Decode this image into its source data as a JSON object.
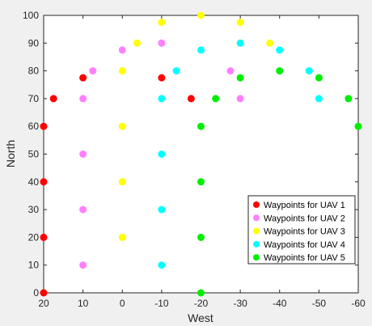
{
  "chart_data": {
    "type": "scatter",
    "title": "",
    "xlabel": "West",
    "ylabel": "North",
    "xlim": [
      20,
      -60
    ],
    "ylim": [
      0,
      100
    ],
    "x_reversed": true,
    "xticks": [
      20,
      10,
      0,
      -10,
      -20,
      -30,
      -40,
      -50,
      -60
    ],
    "yticks": [
      0,
      10,
      20,
      30,
      40,
      50,
      60,
      70,
      80,
      90,
      100
    ],
    "grid": false,
    "legend_placement": "bottom-right",
    "series": [
      {
        "name": "Waypoints for UAV 1",
        "color": "#ff0000",
        "points": [
          [
            20,
            0
          ],
          [
            20,
            20
          ],
          [
            20,
            40
          ],
          [
            20,
            60
          ],
          [
            17.5,
            70
          ],
          [
            10,
            77.5
          ],
          [
            -10,
            77.5
          ],
          [
            -17.5,
            70
          ]
        ]
      },
      {
        "name": "Waypoints for UAV 2",
        "color": "#ff80ff",
        "points": [
          [
            10,
            10
          ],
          [
            10,
            30
          ],
          [
            10,
            50
          ],
          [
            10,
            70
          ],
          [
            7.5,
            80
          ],
          [
            0,
            87.5
          ],
          [
            -10,
            90
          ],
          [
            -27.5,
            80
          ],
          [
            -30,
            70
          ]
        ]
      },
      {
        "name": "Waypoints for UAV 3",
        "color": "#ffff00",
        "points": [
          [
            0,
            20
          ],
          [
            0,
            40
          ],
          [
            0,
            60
          ],
          [
            0,
            80
          ],
          [
            -3.75,
            90
          ],
          [
            -10,
            97.5
          ],
          [
            -20,
            100
          ],
          [
            -30,
            97.5
          ],
          [
            -37.5,
            90
          ]
        ]
      },
      {
        "name": "Waypoints for UAV 4",
        "color": "#00ffff",
        "points": [
          [
            -10,
            10
          ],
          [
            -10,
            30
          ],
          [
            -10,
            50
          ],
          [
            -10,
            70
          ],
          [
            -13.75,
            80
          ],
          [
            -20,
            87.5
          ],
          [
            -30,
            90
          ],
          [
            -40,
            87.5
          ],
          [
            -47.5,
            80
          ],
          [
            -50,
            70
          ]
        ]
      },
      {
        "name": "Waypoints for UAV 5",
        "color": "#00ee00",
        "points": [
          [
            -20,
            0
          ],
          [
            -20,
            20
          ],
          [
            -20,
            40
          ],
          [
            -20,
            60
          ],
          [
            -23.75,
            70
          ],
          [
            -30,
            77.5
          ],
          [
            -40,
            80
          ],
          [
            -50,
            77.5
          ],
          [
            -57.5,
            70
          ],
          [
            -60,
            60
          ]
        ]
      }
    ]
  }
}
